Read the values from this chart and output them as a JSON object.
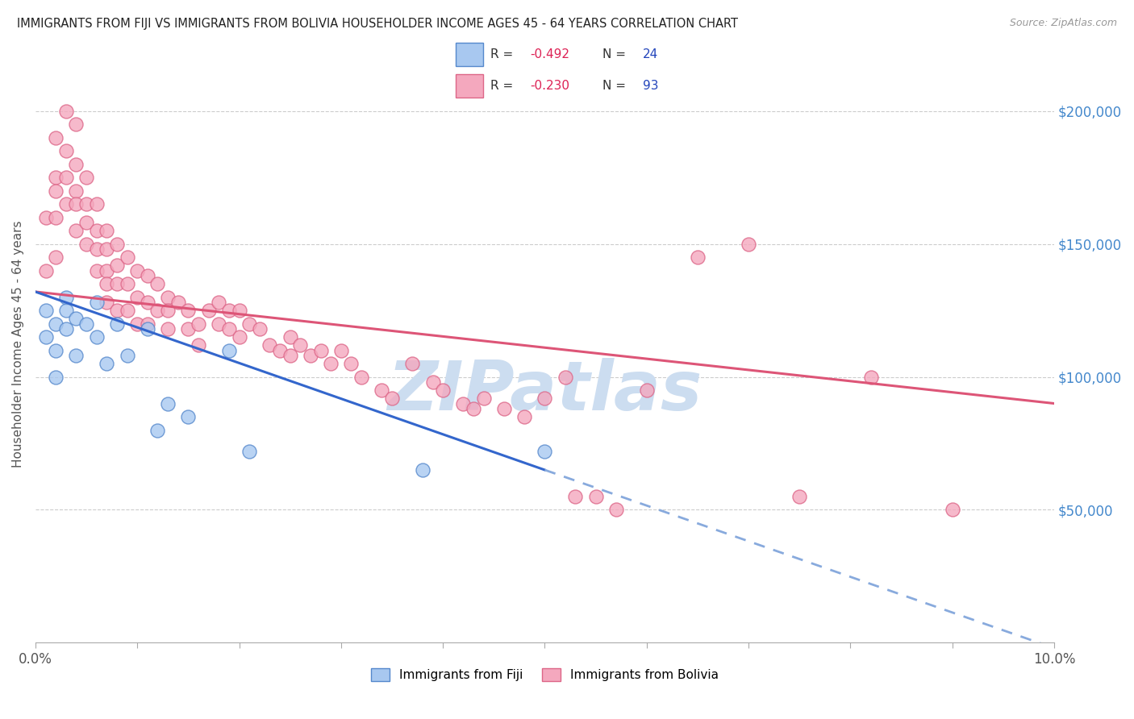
{
  "title": "IMMIGRANTS FROM FIJI VS IMMIGRANTS FROM BOLIVIA HOUSEHOLDER INCOME AGES 45 - 64 YEARS CORRELATION CHART",
  "source": "Source: ZipAtlas.com",
  "ylabel": "Householder Income Ages 45 - 64 years",
  "xlim": [
    0.0,
    0.1
  ],
  "ylim": [
    0,
    225000
  ],
  "xtick_vals": [
    0.0,
    0.01,
    0.02,
    0.03,
    0.04,
    0.05,
    0.06,
    0.07,
    0.08,
    0.09,
    0.1
  ],
  "xtick_labels": [
    "0.0%",
    "",
    "",
    "",
    "",
    "",
    "",
    "",
    "",
    "",
    "10.0%"
  ],
  "ytick_vals": [
    50000,
    100000,
    150000,
    200000
  ],
  "ytick_labels": [
    "$50,000",
    "$100,000",
    "$150,000",
    "$200,000"
  ],
  "fiji_color": "#a8c8f0",
  "bolivia_color": "#f4a8be",
  "fiji_edge": "#5588cc",
  "bolivia_edge": "#dd6688",
  "fiji_line_color": "#3366cc",
  "fiji_dash_color": "#88aadd",
  "bolivia_line_color": "#dd5577",
  "watermark": "ZIPatlas",
  "watermark_color": "#ccddf0",
  "legend_R_color": "#dd2255",
  "legend_N_color": "#2244bb",
  "fiji_R": "-0.492",
  "fiji_N": "24",
  "bolivia_R": "-0.230",
  "bolivia_N": "93",
  "fiji_x": [
    0.001,
    0.001,
    0.002,
    0.002,
    0.002,
    0.003,
    0.003,
    0.003,
    0.004,
    0.004,
    0.005,
    0.006,
    0.006,
    0.007,
    0.008,
    0.009,
    0.011,
    0.012,
    0.013,
    0.015,
    0.019,
    0.021,
    0.038,
    0.05
  ],
  "fiji_y": [
    125000,
    115000,
    120000,
    110000,
    100000,
    130000,
    125000,
    118000,
    122000,
    108000,
    120000,
    128000,
    115000,
    105000,
    120000,
    108000,
    118000,
    80000,
    90000,
    85000,
    110000,
    72000,
    65000,
    72000
  ],
  "bolivia_x": [
    0.001,
    0.001,
    0.002,
    0.002,
    0.002,
    0.002,
    0.002,
    0.003,
    0.003,
    0.003,
    0.003,
    0.004,
    0.004,
    0.004,
    0.004,
    0.004,
    0.005,
    0.005,
    0.005,
    0.005,
    0.006,
    0.006,
    0.006,
    0.006,
    0.007,
    0.007,
    0.007,
    0.007,
    0.007,
    0.008,
    0.008,
    0.008,
    0.008,
    0.009,
    0.009,
    0.009,
    0.01,
    0.01,
    0.01,
    0.011,
    0.011,
    0.011,
    0.012,
    0.012,
    0.013,
    0.013,
    0.013,
    0.014,
    0.015,
    0.015,
    0.016,
    0.016,
    0.017,
    0.018,
    0.018,
    0.019,
    0.019,
    0.02,
    0.02,
    0.021,
    0.022,
    0.023,
    0.024,
    0.025,
    0.025,
    0.026,
    0.027,
    0.028,
    0.029,
    0.03,
    0.031,
    0.032,
    0.034,
    0.035,
    0.037,
    0.039,
    0.04,
    0.042,
    0.043,
    0.044,
    0.046,
    0.048,
    0.05,
    0.052,
    0.053,
    0.055,
    0.057,
    0.06,
    0.065,
    0.07,
    0.075,
    0.082,
    0.09
  ],
  "bolivia_y": [
    160000,
    140000,
    190000,
    175000,
    170000,
    160000,
    145000,
    200000,
    185000,
    175000,
    165000,
    195000,
    180000,
    170000,
    165000,
    155000,
    175000,
    165000,
    158000,
    150000,
    165000,
    155000,
    148000,
    140000,
    155000,
    148000,
    140000,
    135000,
    128000,
    150000,
    142000,
    135000,
    125000,
    145000,
    135000,
    125000,
    140000,
    130000,
    120000,
    138000,
    128000,
    120000,
    135000,
    125000,
    130000,
    125000,
    118000,
    128000,
    125000,
    118000,
    120000,
    112000,
    125000,
    128000,
    120000,
    125000,
    118000,
    125000,
    115000,
    120000,
    118000,
    112000,
    110000,
    115000,
    108000,
    112000,
    108000,
    110000,
    105000,
    110000,
    105000,
    100000,
    95000,
    92000,
    105000,
    98000,
    95000,
    90000,
    88000,
    92000,
    88000,
    85000,
    92000,
    100000,
    55000,
    55000,
    50000,
    95000,
    145000,
    150000,
    55000,
    100000,
    50000
  ]
}
